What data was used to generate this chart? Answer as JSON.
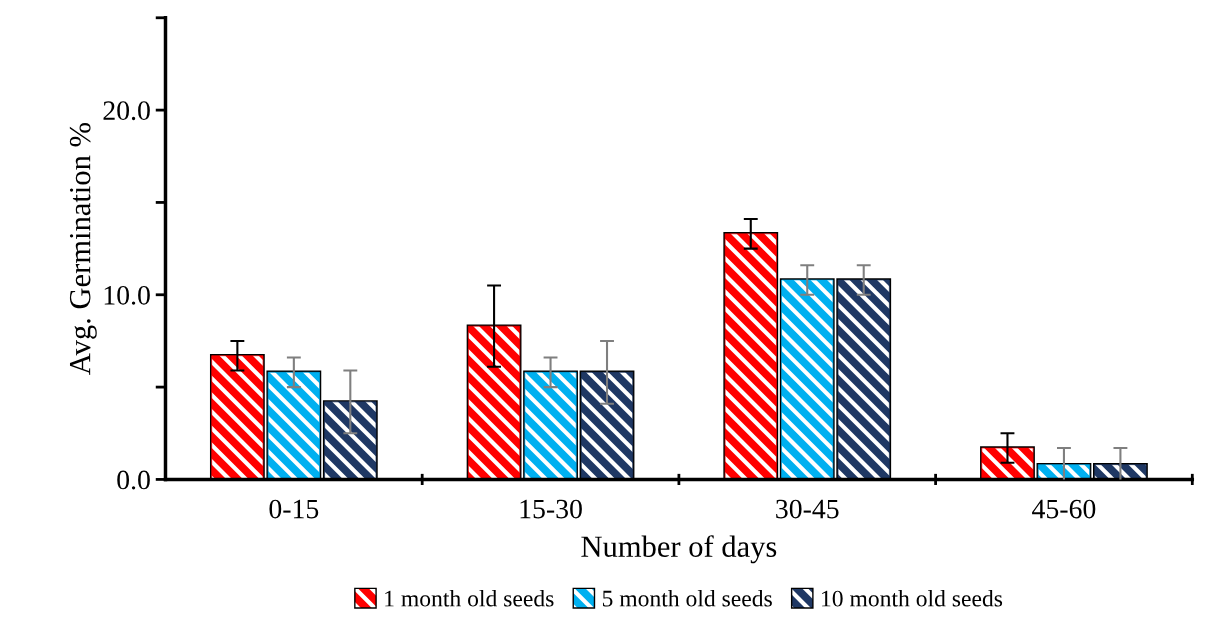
{
  "chart_data": {
    "type": "bar",
    "xlabel": "Number of days",
    "ylabel": "Avg. Germination %",
    "categories": [
      "0-15",
      "15-30",
      "30-45",
      "45-60"
    ],
    "series": [
      {
        "name": "1 month old seeds",
        "color": "#ff0000",
        "values": [
          6.7,
          8.3,
          13.3,
          1.7
        ],
        "errors": [
          0.8,
          2.2,
          0.8,
          0.8
        ]
      },
      {
        "name": "5 month old seeds",
        "color": "#00b0f0",
        "values": [
          5.8,
          5.8,
          10.8,
          0.8
        ],
        "errors": [
          0.8,
          0.8,
          0.8,
          0.9
        ]
      },
      {
        "name": "10 month old seeds",
        "color": "#1f3864",
        "values": [
          4.2,
          5.8,
          10.8,
          0.8
        ],
        "errors": [
          1.7,
          1.7,
          0.8,
          0.9
        ]
      }
    ],
    "ylim": [
      0,
      25
    ],
    "yticks": [
      {
        "value": 0,
        "label": "0.0"
      },
      {
        "value": 5,
        "label": null
      },
      {
        "value": 10,
        "label": "10.0"
      },
      {
        "value": 15,
        "label": null
      },
      {
        "value": 20,
        "label": "20.0"
      },
      {
        "value": 25,
        "label": null
      }
    ],
    "legend": "bottom",
    "grid": false
  }
}
